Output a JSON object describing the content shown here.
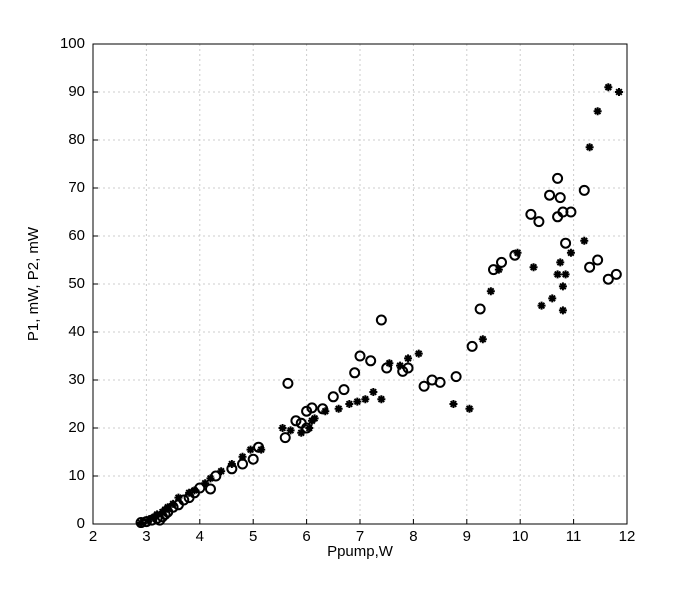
{
  "chart_data": {
    "type": "scatter",
    "x_label": "Ppump,W",
    "y_label": "P1, mW, P2, mW",
    "xlim": [
      2,
      12
    ],
    "ylim": [
      0,
      100
    ],
    "xticks": [
      2,
      3,
      4,
      5,
      6,
      7,
      8,
      9,
      10,
      11,
      12
    ],
    "yticks": [
      0,
      10,
      20,
      30,
      40,
      50,
      60,
      70,
      80,
      90,
      100
    ],
    "grid": true,
    "series": [
      {
        "marker": "circle",
        "color": "#000000",
        "x": [
          2.9,
          3.0,
          3.1,
          3.2,
          3.25,
          3.3,
          3.35,
          3.4,
          3.5,
          3.6,
          3.7,
          3.8,
          3.9,
          4.0,
          4.2,
          4.3,
          4.6,
          4.8,
          5.0,
          5.1,
          5.6,
          5.65,
          5.8,
          5.9,
          6.0,
          6.0,
          6.1,
          6.3,
          6.5,
          6.7,
          6.9,
          7.0,
          7.2,
          7.4,
          7.5,
          7.8,
          7.9,
          8.2,
          8.35,
          8.5,
          8.8,
          9.1,
          9.25,
          9.5,
          9.65,
          9.9,
          10.2,
          10.35,
          10.55,
          10.7,
          10.7,
          10.75,
          10.8,
          10.85,
          10.95,
          11.2,
          11.3,
          11.45,
          11.65,
          11.8
        ],
        "values": [
          0.3,
          0.5,
          0.8,
          1.2,
          0.8,
          1.5,
          2,
          2.5,
          3.5,
          4,
          5,
          5.5,
          6.5,
          7.5,
          7.3,
          10,
          11.5,
          12.5,
          13.5,
          16,
          18,
          29.3,
          21.5,
          21,
          23.5,
          20,
          24.2,
          24,
          26.5,
          28,
          31.5,
          35,
          34,
          42.5,
          32.5,
          31.8,
          32.5,
          28.7,
          30,
          29.5,
          30.7,
          37,
          44.8,
          53,
          54.5,
          56,
          64.5,
          63,
          68.5,
          72,
          64,
          68,
          65,
          58.5,
          65,
          69.5,
          53.5,
          55,
          51,
          52
        ]
      },
      {
        "marker": "asterisk",
        "color": "#000000",
        "x": [
          2.9,
          3.05,
          3.15,
          3.2,
          3.3,
          3.35,
          3.4,
          3.5,
          3.6,
          3.8,
          3.9,
          4.1,
          4.2,
          4.4,
          4.6,
          4.8,
          4.95,
          5.15,
          5.55,
          5.7,
          5.9,
          6.05,
          6.1,
          6.15,
          6.35,
          6.6,
          6.8,
          6.95,
          7.1,
          7.25,
          7.4,
          7.55,
          7.75,
          7.9,
          8.1,
          8.75,
          9.05,
          9.3,
          9.45,
          9.6,
          9.95,
          10.25,
          10.4,
          10.6,
          10.7,
          10.75,
          10.8,
          10.85,
          10.95,
          10.8,
          11.2,
          11.3,
          11.45,
          11.65,
          11.85
        ],
        "values": [
          0.2,
          1,
          1.5,
          2,
          2.5,
          3,
          3.5,
          4.2,
          5.5,
          6.5,
          7,
          8.5,
          9.5,
          11,
          12.5,
          14,
          15.5,
          15.5,
          20,
          19.5,
          19,
          20,
          21.5,
          22,
          23.5,
          24,
          25,
          25.5,
          26,
          27.5,
          26,
          33.5,
          33,
          34.5,
          35.5,
          25,
          24,
          38.5,
          48.5,
          53,
          56.5,
          53.5,
          45.5,
          47,
          52,
          54.5,
          44.5,
          52,
          56.5,
          49.5,
          59,
          78.5,
          86,
          91,
          90
        ]
      }
    ]
  }
}
